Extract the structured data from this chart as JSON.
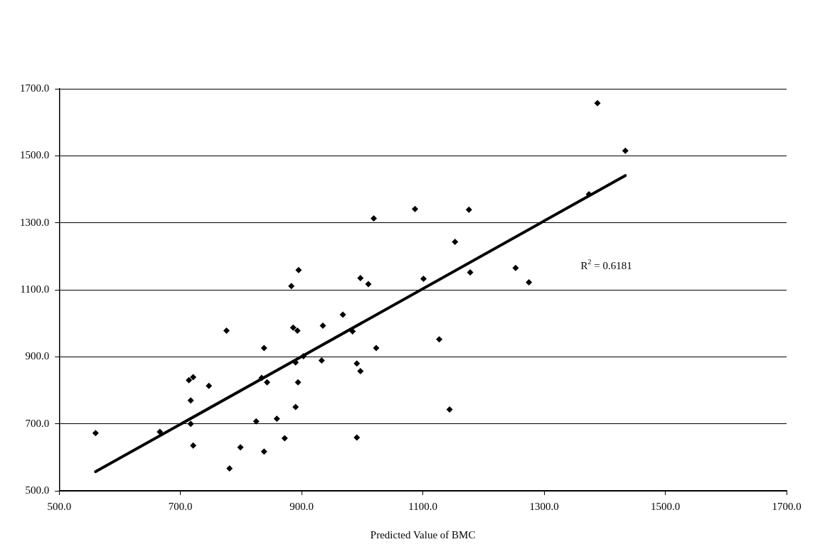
{
  "chart_data": {
    "type": "scatter",
    "xlabel": "Predicted Value of BMC",
    "xlim": [
      500,
      1700
    ],
    "ylim": [
      500,
      1700
    ],
    "xticks": [
      {
        "value": 500,
        "label": "500.0"
      },
      {
        "value": 700,
        "label": "700.0"
      },
      {
        "value": 900,
        "label": "900.0"
      },
      {
        "value": 1100,
        "label": "1100.0"
      },
      {
        "value": 1300,
        "label": "1300.0"
      },
      {
        "value": 1500,
        "label": "1500.0"
      },
      {
        "value": 1700,
        "label": "1700.0"
      }
    ],
    "yticks": [
      {
        "value": 500,
        "label": "500.0"
      },
      {
        "value": 700,
        "label": "700.0"
      },
      {
        "value": 900,
        "label": "900.0"
      },
      {
        "value": 1100,
        "label": "1100.0"
      },
      {
        "value": 1300,
        "label": "1300.0"
      },
      {
        "value": 1500,
        "label": "1500.0"
      },
      {
        "value": 1700,
        "label": "1700.0"
      }
    ],
    "grid": "y",
    "legend": false,
    "annotations": [
      "R$^{2}$ = 0.6181"
    ],
    "series": [
      {
        "type": "scatter",
        "color": "#000000",
        "marker": "diamond",
        "x": [
          560,
          666,
          717,
          721,
          717,
          714,
          721,
          747,
          776,
          781,
          799,
          825,
          834,
          843,
          838,
          838,
          859,
          872,
          890,
          894,
          890,
          903,
          886,
          893,
          883,
          895,
          935,
          968,
          984,
          933,
          991,
          997,
          1023,
          991,
          997,
          1010,
          1019,
          1087,
          1101,
          1127,
          1144,
          1153,
          1176,
          1178,
          1253,
          1275,
          1388,
          1434,
          1374
        ],
        "values": [
          672,
          676,
          700,
          635,
          770,
          830,
          839,
          813,
          978,
          567,
          630,
          707,
          837,
          824,
          926,
          617,
          715,
          657,
          750,
          824,
          883,
          902,
          987,
          978,
          1111,
          1159,
          993,
          1026,
          976,
          889,
          880,
          857,
          926,
          659,
          1135,
          1117,
          1313,
          1341,
          1133,
          952,
          743,
          1243,
          1339,
          1152,
          1165,
          1122,
          1657,
          1515,
          1385
        ]
      },
      {
        "type": "line",
        "color": "#000000",
        "marker": "none",
        "line_style": "solid",
        "x": [
          560,
          1434
        ],
        "values": [
          557,
          1441
        ]
      }
    ]
  }
}
